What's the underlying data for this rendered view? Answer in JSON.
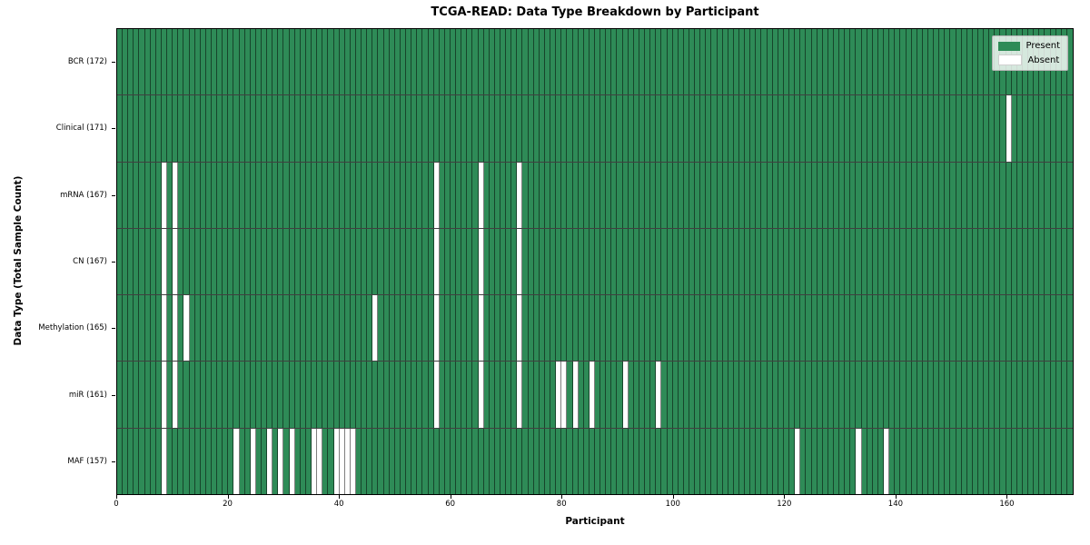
{
  "title": "TCGA-READ: Data Type Breakdown by Participant",
  "xlabel": "Participant",
  "ylabel": "Data Type (Total Sample Count)",
  "legend": {
    "present_label": "Present",
    "absent_label": "Absent"
  },
  "colors": {
    "present": "#2e8b57",
    "absent": "#ffffff",
    "cell_edge": "#000000",
    "legend_border": "#b4b4b4"
  },
  "chart_data": {
    "type": "heatmap",
    "title": "TCGA-READ: Data Type Breakdown by Participant",
    "xlabel": "Participant",
    "ylabel": "Data Type (Total Sample Count)",
    "legend_entries": [
      "Present",
      "Absent"
    ],
    "legend_position": "upper right",
    "grid": false,
    "n_participants": 172,
    "x_range": [
      0,
      172
    ],
    "x_ticks": [
      0,
      20,
      40,
      60,
      80,
      100,
      120,
      140,
      160
    ],
    "rows": [
      {
        "data_type": "BCR",
        "label": "BCR (172)",
        "total": 172,
        "absent_participants": []
      },
      {
        "data_type": "Clinical",
        "label": "Clinical (171)",
        "total": 171,
        "absent_participants": [
          160
        ]
      },
      {
        "data_type": "mRNA",
        "label": "mRNA (167)",
        "total": 167,
        "absent_participants": [
          8,
          10,
          57,
          65,
          72
        ]
      },
      {
        "data_type": "CN",
        "label": "CN (167)",
        "total": 167,
        "absent_participants": [
          8,
          10,
          57,
          65,
          72
        ]
      },
      {
        "data_type": "Methylation",
        "label": "Methylation (165)",
        "total": 165,
        "absent_participants": [
          8,
          10,
          12,
          46,
          57,
          65,
          72
        ]
      },
      {
        "data_type": "miR",
        "label": "miR (161)",
        "total": 161,
        "absent_participants": [
          8,
          10,
          57,
          65,
          72,
          79,
          80,
          82,
          85,
          91,
          97
        ]
      },
      {
        "data_type": "MAF",
        "label": "MAF (157)",
        "total": 157,
        "absent_participants": [
          8,
          21,
          24,
          27,
          29,
          31,
          35,
          36,
          39,
          40,
          41,
          42,
          122,
          133,
          138
        ]
      }
    ]
  }
}
